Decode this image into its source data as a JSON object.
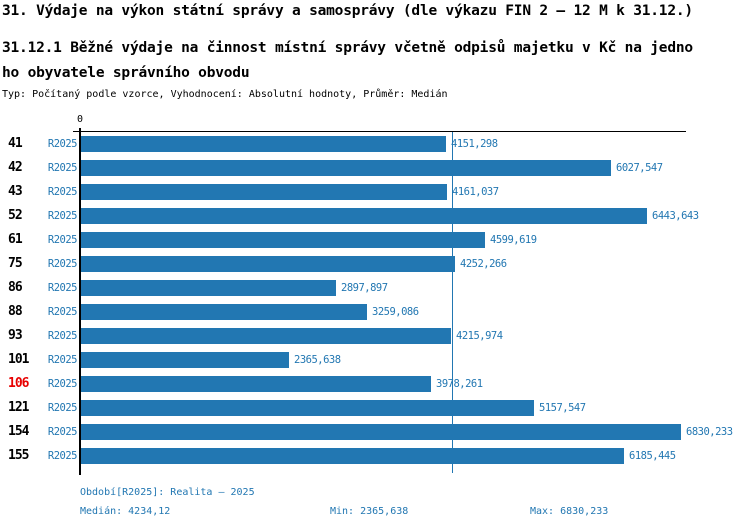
{
  "header": {
    "title": "31. Výdaje na výkon státní správy a samosprávy (dle výkazu FIN 2 – 12 M k 31.12.)",
    "subtitle_lines": [
      "31.12.1 Běžné výdaje na činnost místní správy včetně odpisů majetku v Kč na jedno",
      "ho obyvatele správního obvodu"
    ],
    "meta_line": "Typ: Počítaný podle vzorce, Vyhodnocení: Absolutní hodnoty, Průměr: Medián"
  },
  "chart_data": {
    "type": "bar",
    "orientation": "horizontal",
    "title": "31.12.1 Běžné výdaje na činnost místní správy včetně odpisů majetku v Kč na jednoho obyvatele správního obvodu",
    "series_label": "R2025",
    "zero_label": "0",
    "categories": [
      "41",
      "42",
      "43",
      "52",
      "61",
      "75",
      "86",
      "88",
      "93",
      "101",
      "106",
      "121",
      "154",
      "155"
    ],
    "values": [
      4151.298,
      6027.547,
      4161.037,
      6443.643,
      4599.619,
      4252.266,
      2897.897,
      3259.086,
      4215.974,
      2365.638,
      3978.261,
      5157.547,
      6830.233,
      6185.445
    ],
    "value_labels": [
      "4151,298",
      "6027,547",
      "4161,037",
      "6443,643",
      "4599,619",
      "4252,266",
      "2897,897",
      "3259,086",
      "4215,974",
      "2365,638",
      "3978,261",
      "5157,547",
      "6830,233",
      "6185,445"
    ],
    "highlighted_category": "106",
    "median_value": 4234.12,
    "min_value": 2365.638,
    "max_value": 6830.233,
    "xlim": [
      0,
      6900
    ],
    "grid": false,
    "median_line": true,
    "legend_position": "none",
    "colors": {
      "bar": "#2277b2",
      "highlight_text": "#e80000",
      "axis": "#000000"
    }
  },
  "footer": {
    "period_line": "Období[R2025]: Realita – 2025",
    "median_line": "Medián: 4234,12",
    "min_line": "Min: 2365,638",
    "max_line": "Max: 6830,233"
  }
}
